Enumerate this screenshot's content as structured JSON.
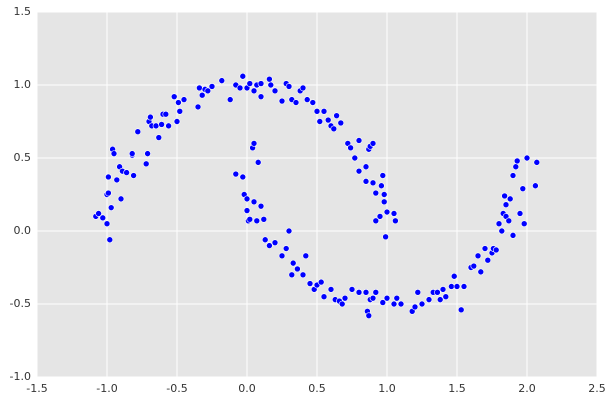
{
  "chart_data": {
    "type": "scatter",
    "series": [
      {
        "color": "#0000ff",
        "x": [
          -1.08,
          -1.06,
          -1.03,
          -1.0,
          -1.0,
          -0.99,
          -0.99,
          -0.98,
          -0.97,
          -0.96,
          -0.95,
          -0.93,
          -0.91,
          -0.9,
          -0.89,
          -0.86,
          -0.82,
          -0.82,
          -0.81,
          -0.78,
          -0.72,
          -0.71,
          -0.7,
          -0.69,
          -0.68,
          -0.65,
          -0.63,
          -0.61,
          -0.6,
          -0.58,
          -0.56,
          -0.52,
          -0.5,
          -0.49,
          -0.48,
          -0.45,
          -0.35,
          -0.34,
          -0.32,
          -0.3,
          -0.28,
          -0.25,
          -0.18,
          -0.12,
          -0.08,
          -0.05,
          -0.03,
          0.0,
          0.02,
          0.05,
          0.07,
          0.1,
          0.1,
          0.16,
          0.17,
          0.2,
          0.25,
          0.28,
          0.3,
          0.32,
          0.35,
          0.38,
          0.4,
          0.43,
          0.47,
          0.5,
          0.52,
          0.55,
          0.58,
          0.6,
          0.62,
          0.64,
          0.67,
          0.72,
          0.74,
          0.77,
          0.8,
          0.8,
          0.85,
          0.85,
          0.87,
          0.88,
          0.9,
          0.9,
          0.92,
          0.92,
          0.95,
          0.96,
          0.97,
          0.98,
          0.98,
          0.99,
          1.0,
          1.05,
          1.06,
          -0.08,
          -0.03,
          -0.02,
          0.0,
          0.0,
          0.01,
          0.02,
          0.04,
          0.05,
          0.05,
          0.07,
          0.08,
          0.1,
          0.12,
          0.13,
          0.16,
          0.2,
          0.25,
          0.28,
          0.3,
          0.32,
          0.33,
          0.36,
          0.4,
          0.42,
          0.45,
          0.48,
          0.5,
          0.53,
          0.55,
          0.6,
          0.63,
          0.66,
          0.68,
          0.7,
          0.75,
          0.8,
          0.85,
          0.86,
          0.87,
          0.88,
          0.9,
          0.92,
          0.97,
          1.0,
          1.05,
          1.07,
          1.1,
          1.18,
          1.2,
          1.22,
          1.25,
          1.3,
          1.33,
          1.36,
          1.38,
          1.4,
          1.42,
          1.46,
          1.48,
          1.5,
          1.53,
          1.55,
          1.6,
          1.62,
          1.65,
          1.67,
          1.7,
          1.72,
          1.75,
          1.76,
          1.8,
          1.82,
          1.83,
          1.84,
          1.85,
          1.87,
          1.88,
          1.9,
          1.92,
          1.93,
          1.95,
          1.97,
          1.98,
          2.0,
          2.07,
          2.06,
          1.9,
          1.85,
          1.78
        ],
        "values": [
          0.1,
          0.12,
          0.09,
          0.05,
          0.25,
          0.26,
          0.37,
          -0.06,
          0.16,
          0.56,
          0.53,
          0.35,
          0.44,
          0.22,
          0.41,
          0.4,
          0.52,
          0.53,
          0.38,
          0.68,
          0.46,
          0.53,
          0.75,
          0.78,
          0.72,
          0.72,
          0.64,
          0.73,
          0.8,
          0.8,
          0.72,
          0.92,
          0.75,
          0.88,
          0.82,
          0.9,
          0.85,
          0.98,
          0.93,
          0.97,
          0.96,
          0.99,
          1.03,
          0.9,
          1.0,
          0.98,
          1.06,
          0.98,
          1.01,
          0.96,
          1.0,
          0.92,
          1.01,
          1.04,
          1.0,
          0.96,
          0.89,
          1.01,
          0.99,
          0.9,
          0.88,
          0.96,
          0.98,
          0.9,
          0.88,
          0.82,
          0.75,
          0.82,
          0.76,
          0.72,
          0.7,
          0.79,
          0.74,
          0.6,
          0.57,
          0.5,
          0.62,
          0.41,
          0.44,
          0.34,
          0.56,
          0.58,
          0.6,
          0.33,
          0.26,
          0.07,
          0.1,
          0.31,
          0.38,
          0.25,
          0.2,
          -0.04,
          0.13,
          0.12,
          0.07,
          0.39,
          0.37,
          0.25,
          0.22,
          0.14,
          0.07,
          0.08,
          0.57,
          0.6,
          0.2,
          0.07,
          0.47,
          0.17,
          0.08,
          -0.06,
          -0.1,
          -0.08,
          -0.17,
          -0.12,
          0.0,
          -0.3,
          -0.22,
          -0.26,
          -0.3,
          -0.17,
          -0.36,
          -0.4,
          -0.37,
          -0.35,
          -0.45,
          -0.4,
          -0.47,
          -0.48,
          -0.5,
          -0.46,
          -0.4,
          -0.42,
          -0.42,
          -0.55,
          -0.58,
          -0.47,
          -0.46,
          -0.42,
          -0.49,
          -0.46,
          -0.5,
          -0.46,
          -0.5,
          -0.55,
          -0.52,
          -0.42,
          -0.5,
          -0.47,
          -0.42,
          -0.42,
          -0.47,
          -0.4,
          -0.45,
          -0.38,
          -0.31,
          -0.38,
          -0.54,
          -0.38,
          -0.25,
          -0.24,
          -0.17,
          -0.28,
          -0.12,
          -0.2,
          -0.15,
          -0.12,
          0.05,
          0.0,
          0.12,
          0.24,
          0.1,
          0.07,
          0.22,
          0.38,
          0.44,
          0.48,
          0.12,
          0.29,
          0.05,
          0.5,
          0.47,
          0.31,
          -0.03,
          0.18,
          -0.13
        ]
      }
    ],
    "xlim": [
      -1.5,
      2.5
    ],
    "xticks": [
      -1.5,
      {
        "value": -1.0,
        "label": "-1.0"
      },
      -0.5,
      {
        "value": 0,
        "label": "0.0"
      },
      0.5,
      {
        "value": 1,
        "label": "1.0"
      },
      1.5,
      {
        "value": 2,
        "label": "2.0"
      },
      2.5
    ],
    "ylim": [
      -1.0,
      1.5
    ],
    "yticks": [
      {
        "value": -1.0,
        "label": "-1.0"
      },
      -0.5,
      {
        "value": 0,
        "label": "0.0"
      },
      0.5,
      {
        "value": 1,
        "label": "1.0"
      },
      1.5
    ],
    "grid": true
  }
}
